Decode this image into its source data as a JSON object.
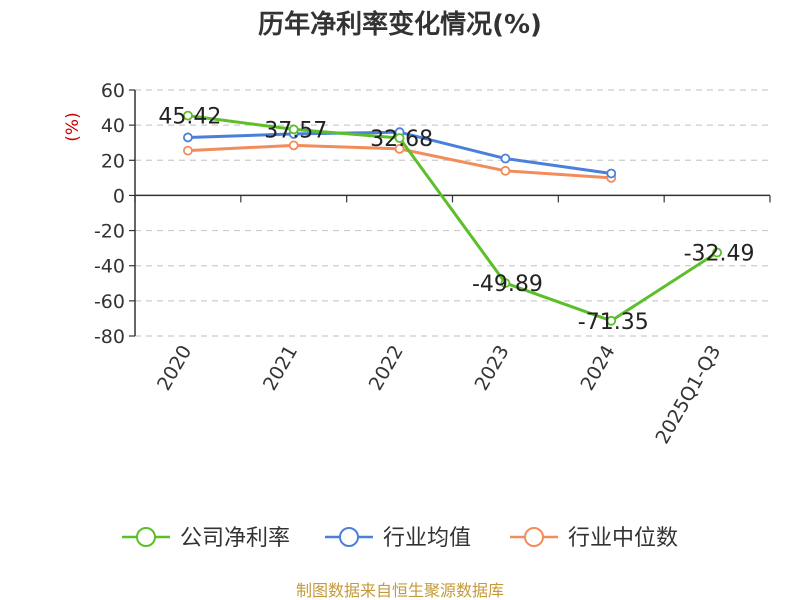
{
  "chart_data": {
    "type": "line",
    "title": "历年净利率变化情况(%)",
    "ylabel": "(%)",
    "ylabel_color": "#cc0000",
    "categories": [
      "2020",
      "2021",
      "2022",
      "2023",
      "2024",
      "2025Q1-Q3"
    ],
    "ylim": [
      -80,
      60
    ],
    "yticks": [
      60,
      40,
      20,
      0,
      -20,
      -40,
      -60,
      -80
    ],
    "ytick_labels": [
      "60",
      "40",
      "20",
      "0",
      "-20",
      "-40",
      "-60",
      "-80"
    ],
    "grid": true,
    "legend_position": "bottom",
    "series": [
      {
        "name": "公司净利率",
        "color": "#5cbf2a",
        "values": [
          45.42,
          37.57,
          32.68,
          -49.89,
          -71.35,
          -32.49
        ],
        "labels": [
          "45.42",
          "37.57",
          "32.68",
          "-49.89",
          "-71.35",
          "-32.49"
        ]
      },
      {
        "name": "行业均值",
        "color": "#4a80d9",
        "values": [
          33,
          35,
          36,
          21,
          12.5,
          null
        ]
      },
      {
        "name": "行业中位数",
        "color": "#f28c5a",
        "values": [
          25.5,
          28.5,
          26.5,
          14,
          10,
          null
        ]
      }
    ]
  },
  "footer": {
    "source_text": "制图数据来自恒生聚源数据库",
    "color": "#c49a3a"
  }
}
